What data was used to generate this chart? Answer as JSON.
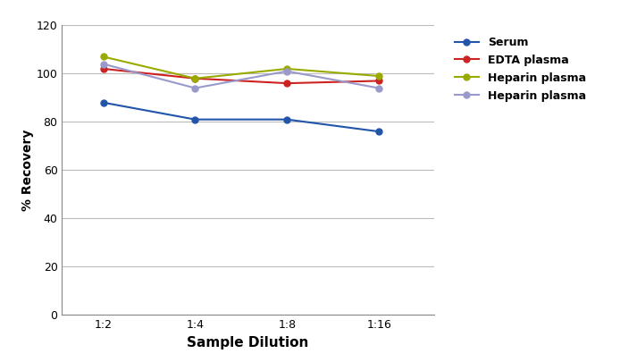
{
  "x_labels": [
    "1:2",
    "1:4",
    "1:8",
    "1:16"
  ],
  "x_values": [
    1,
    2,
    3,
    4
  ],
  "series": [
    {
      "name": "Serum",
      "values": [
        88,
        81,
        81,
        76
      ],
      "color": "#2255AA",
      "marker": "o"
    },
    {
      "name": "EDTA plasma",
      "values": [
        102,
        98,
        96,
        97
      ],
      "color": "#CC2222",
      "marker": "o"
    },
    {
      "name": "Heparin plasma",
      "values": [
        107,
        98,
        102,
        99
      ],
      "color": "#99AA00",
      "marker": "o"
    },
    {
      "name": "Heparin plasma",
      "values": [
        104,
        94,
        101,
        94
      ],
      "color": "#9999CC",
      "marker": "o"
    }
  ],
  "xlabel": "Sample Dilution",
  "ylabel": "% Recovery",
  "ylim": [
    0,
    120
  ],
  "yticks": [
    0,
    20,
    40,
    60,
    80,
    100,
    120
  ],
  "xlim": [
    0.55,
    4.6
  ],
  "background_color": "#ffffff",
  "grid_color": "#bbbbbb",
  "marker_size": 5,
  "line_width": 1.5,
  "xlabel_fontsize": 11,
  "ylabel_fontsize": 10,
  "tick_fontsize": 9,
  "legend_fontsize": 9
}
